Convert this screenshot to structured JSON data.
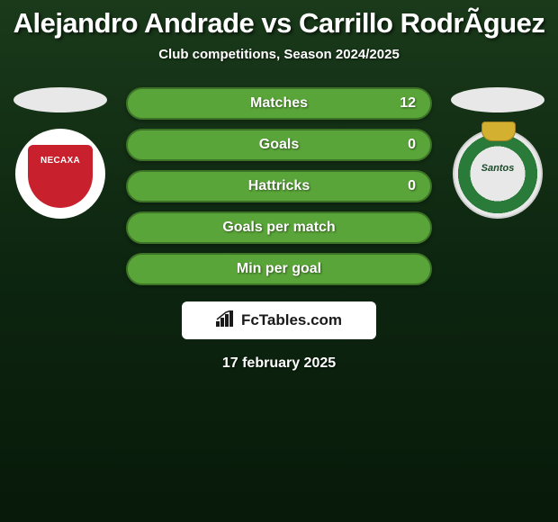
{
  "title": "Alejandro Andrade vs Carrillo RodrÃ­guez",
  "subtitle": "Club competitions, Season 2024/2025",
  "player_left": {
    "name": "Alejandro Andrade",
    "club": "Necaxa"
  },
  "player_right": {
    "name": "Carrillo Rodriguez",
    "club": "Santos Laguna"
  },
  "stats": [
    {
      "label": "Matches",
      "left_value": "",
      "right_value": "12",
      "bg_color": "#5aa539",
      "border_color": "#3d7326"
    },
    {
      "label": "Goals",
      "left_value": "",
      "right_value": "0",
      "bg_color": "#5aa539",
      "border_color": "#3d7326"
    },
    {
      "label": "Hattricks",
      "left_value": "",
      "right_value": "0",
      "bg_color": "#5aa539",
      "border_color": "#3d7326"
    },
    {
      "label": "Goals per match",
      "left_value": "",
      "right_value": "",
      "bg_color": "#5aa539",
      "border_color": "#3d7326"
    },
    {
      "label": "Min per goal",
      "left_value": "",
      "right_value": "",
      "bg_color": "#5aa539",
      "border_color": "#3d7326"
    }
  ],
  "brand": {
    "name": "FcTables.com",
    "icon": "chart"
  },
  "date": "17 february 2025",
  "styling": {
    "title_fontsize": 31,
    "title_color": "#ffffff",
    "subtitle_fontsize": 15,
    "stat_fontsize": 16,
    "stat_text_color": "#ffffff",
    "stat_bar_height": 36,
    "stat_bar_radius": 18,
    "background_gradient": [
      "#1a3a1a",
      "#0d2610",
      "#081a0a"
    ],
    "player_photo_bg": "#e8e8e8",
    "brand_bg": "#ffffff",
    "brand_text_color": "#1a1a1a",
    "date_fontsize": 16
  }
}
